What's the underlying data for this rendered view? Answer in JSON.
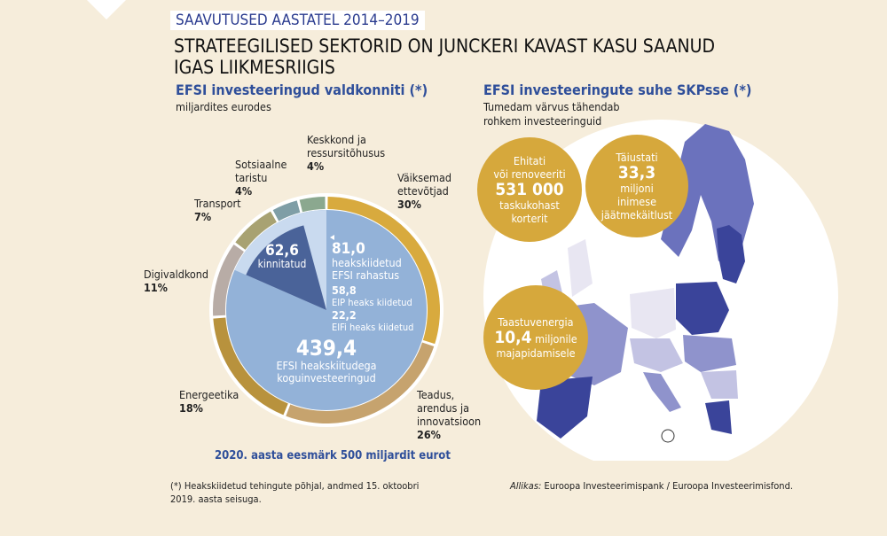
{
  "header": {
    "kicker": "SAAVUTUSED AASTATEL 2014–2019",
    "title": "STRATEEGILISED SEKTORID ON JUNCKERI KAVAST KASU SAANUD IGAS LIIKMESRIIGIS"
  },
  "left": {
    "heading": "EFSI investeeringud valdkonniti (*)",
    "subheading": "miljardites eurodes",
    "goal": "2020. aasta eesmärk 500 miljardit eurot"
  },
  "chart_data": {
    "type": "pie",
    "title": "EFSI investeeringud valdkonniti (*)",
    "unit": "miljardites eurodes",
    "ring": [
      {
        "label": "Väiksemad ettevõtjad",
        "value": 30,
        "pct": "30%",
        "color": "#d8aa3e"
      },
      {
        "label": "Teadus, arendus ja innovatsioon",
        "value": 26,
        "pct": "26%",
        "color": "#c6a36e"
      },
      {
        "label": "Energeetika",
        "value": 18,
        "pct": "18%",
        "color": "#b8923d"
      },
      {
        "label": "Digivaldkond",
        "value": 11,
        "pct": "11%",
        "color": "#b8aca6"
      },
      {
        "label": "Transport",
        "value": 7,
        "pct": "7%",
        "color": "#a8a272"
      },
      {
        "label": "Sotsiaalne taristu",
        "value": 4,
        "pct": "4%",
        "color": "#7f9ea6"
      },
      {
        "label": "Keskkond ja ressursitõhusus",
        "value": 4,
        "pct": "4%",
        "color": "#8ba88f"
      }
    ],
    "inner": {
      "total": {
        "value": "439,4",
        "label1": "EFSI heakskiitudega",
        "label2": "koguinvesteeringud"
      },
      "approved": {
        "value": "81,0",
        "label1": "heakskiidetud",
        "label2": "EFSI rahastus"
      },
      "signed": {
        "value": "62,6",
        "label": "kinnitatud"
      },
      "eib": {
        "value": "58,8",
        "label": "EIP heaks kiidetud"
      },
      "eif": {
        "value": "22,2",
        "label": "EIFi heaks kiidetud"
      }
    },
    "colors": {
      "total": "#93b2d8",
      "approved": "#c9daef",
      "signed": "#4a6399"
    }
  },
  "right": {
    "heading": "EFSI investeeringute suhe SKPsse (*)",
    "subheading": "Tumedam värvus tähendab rohkem investeeringuid",
    "bubbles": [
      {
        "l1": "Ehitati",
        "l2": "või renoveeriti",
        "big": "531 000",
        "l3": "taskukohast",
        "l4": "korterit"
      },
      {
        "l1": "Täiustati",
        "big": "33,3",
        "l2": "miljoni",
        "l3": "inimese",
        "l4": "jäätmekäitlust"
      },
      {
        "l1": "Taastuvenergia",
        "big": "10,4",
        "l2": "miljonile",
        "l3": "majapidamisele"
      }
    ],
    "map_colors": [
      "#e8e6f2",
      "#c3c3e3",
      "#8f93cc",
      "#6b72bd",
      "#3a449a"
    ]
  },
  "footer": {
    "note": "(*) Heakskiidetud tehingute põhjal, andmed 15. oktoobri 2019. aasta seisuga.",
    "source_label": "Allikas:",
    "source": "Euroopa Investeerimispank / Euroopa Investeerimisfond."
  }
}
